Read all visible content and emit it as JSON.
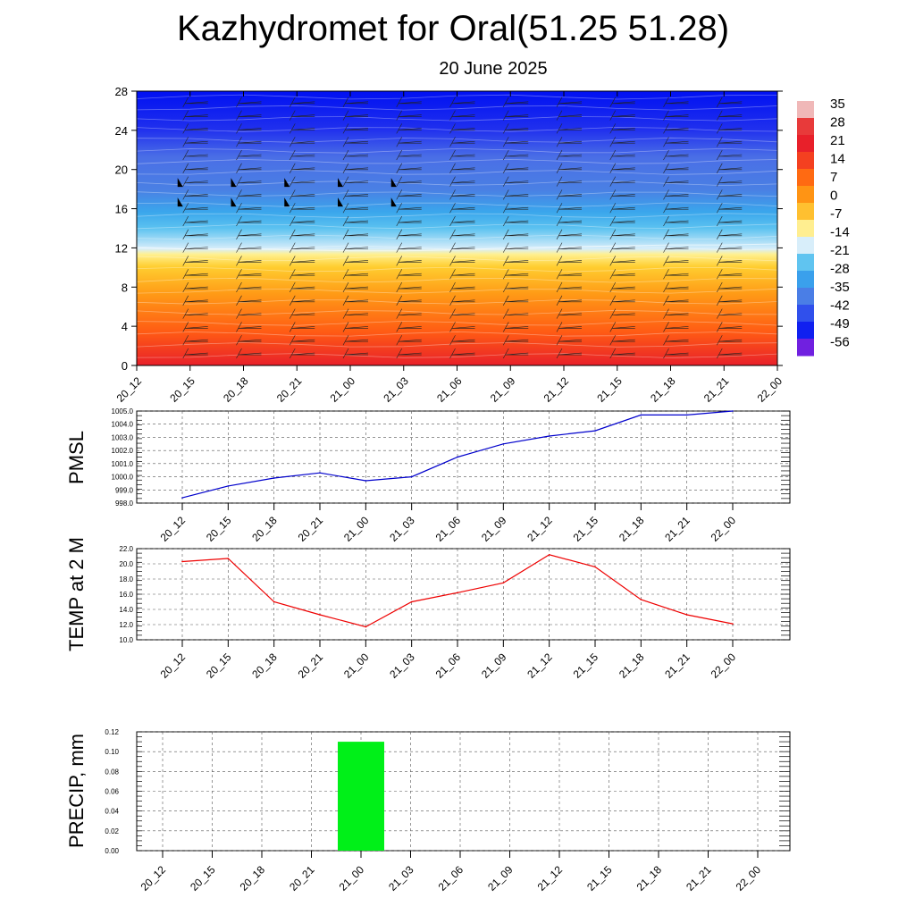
{
  "title": "Kazhydromet for Oral(51.25 51.28)",
  "subtitle": "20 June 2025",
  "chart_data": [
    {
      "type": "heatmap",
      "description_key": "cross-section",
      "x_tick_labels": [
        "20_12",
        "20_15",
        "20_18",
        "20_21",
        "21_00",
        "21_03",
        "21_06",
        "21_09",
        "21_12",
        "21_15",
        "21_18",
        "21_21",
        "22_00"
      ],
      "y_tick_labels": [
        "0",
        "4",
        "8",
        "12",
        "16",
        "20",
        "24",
        "28"
      ],
      "ylim": [
        0,
        28
      ],
      "colorbar_labels": [
        "35",
        "28",
        "21",
        "14",
        "7",
        "0",
        "-7",
        "-14",
        "-21",
        "-28",
        "-35",
        "-42",
        "-49",
        "-56"
      ],
      "color_stops": [
        "#e22a2a",
        "#ff6f10",
        "#ffb020",
        "#ffe070",
        "#d0eaf5",
        "#40b6ee",
        "#4a7ee8",
        "#0a10f0"
      ],
      "freezing_level": [
        12.0,
        11.9,
        11.9,
        11.8,
        11.7,
        11.7,
        11.8,
        12.0,
        12.1,
        12.2,
        12.3,
        12.3,
        12.4
      ],
      "cold_pocket_times": [
        "20_15",
        "20_18",
        "20_21",
        "21_00",
        "21_03"
      ],
      "cold_pocket_levels": [
        16.5,
        18.5
      ]
    },
    {
      "type": "line",
      "ylabel": "PMSL",
      "x": [
        "20_12",
        "20_15",
        "20_18",
        "20_21",
        "21_00",
        "21_03",
        "21_06",
        "21_09",
        "21_12",
        "21_15",
        "21_18",
        "21_21",
        "22_00"
      ],
      "series": [
        {
          "color": "#0000cc",
          "values": [
            998.4,
            999.3,
            999.9,
            1000.3,
            999.7,
            1000.0,
            1001.5,
            1002.5,
            1003.1,
            1003.5,
            1004.7,
            1004.7,
            1005.0
          ]
        }
      ],
      "ylim": [
        998.0,
        1005.0
      ],
      "y_tick_labels": [
        "998.0",
        "999.0",
        "1000.0",
        "1001.0",
        "1002.0",
        "1003.0",
        "1004.0",
        "1005.0"
      ]
    },
    {
      "type": "line",
      "ylabel": "TEMP at 2 M",
      "x": [
        "20_12",
        "20_15",
        "20_18",
        "20_21",
        "21_00",
        "21_03",
        "21_06",
        "21_09",
        "21_12",
        "21_15",
        "21_18",
        "21_21",
        "22_00"
      ],
      "series": [
        {
          "color": "#ee0000",
          "values": [
            20.3,
            20.7,
            15.0,
            13.3,
            11.7,
            15.0,
            16.2,
            17.5,
            21.2,
            19.6,
            15.3,
            13.3,
            12.1
          ]
        }
      ],
      "ylim": [
        10.0,
        22.0
      ],
      "y_tick_labels": [
        "10.0",
        "12.0",
        "14.0",
        "16.0",
        "18.0",
        "20.0",
        "22.0"
      ]
    },
    {
      "type": "bar",
      "ylabel": "PRECIP, mm",
      "categories": [
        "20_12",
        "20_15",
        "20_18",
        "20_21",
        "21_00",
        "21_03",
        "21_06",
        "21_09",
        "21_12",
        "21_15",
        "21_18",
        "21_21",
        "22_00"
      ],
      "values": [
        0,
        0,
        0,
        0,
        0.11,
        0,
        0,
        0,
        0,
        0,
        0,
        0,
        0
      ],
      "bar_color": "#00f018",
      "ylim": [
        0,
        0.12
      ],
      "y_tick_labels": [
        "0.00",
        "0.02",
        "0.04",
        "0.06",
        "0.08",
        "0.10",
        "0.12"
      ]
    }
  ]
}
